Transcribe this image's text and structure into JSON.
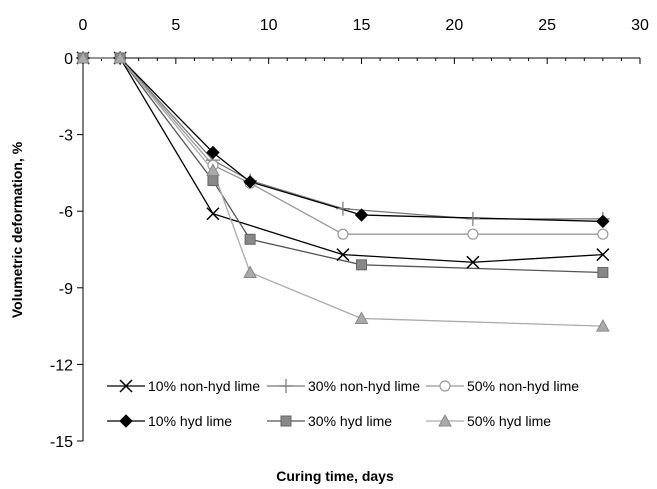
{
  "chart_data": {
    "type": "line",
    "xlabel": "Curing time, days",
    "ylabel": "Volumetric deformation, %",
    "xlim": [
      0,
      30
    ],
    "ylim": [
      -15,
      0
    ],
    "x_ticks": [
      "0",
      "5",
      "10",
      "15",
      "20",
      "25",
      "30"
    ],
    "y_ticks": [
      "0",
      "-3",
      "-6",
      "-9",
      "-12",
      "-15"
    ],
    "x_axis_position": "top",
    "grid": false,
    "legend_placement": "bottom-inside",
    "series": [
      {
        "name": "10% non-hyd lime",
        "marker": "x",
        "color": "#000000",
        "line_color": "#000000",
        "points": [
          [
            0,
            0
          ],
          [
            2,
            0
          ],
          [
            7,
            -6.1
          ],
          [
            14,
            -7.7
          ],
          [
            21,
            -8.0
          ],
          [
            28,
            -7.7
          ]
        ]
      },
      {
        "name": "30% non-hyd lime",
        "marker": "plus",
        "color": "#777777",
        "line_color": "#777777",
        "points": [
          [
            0,
            0
          ],
          [
            2,
            0
          ],
          [
            7,
            -4.0
          ],
          [
            9,
            -4.8
          ],
          [
            14,
            -5.9
          ],
          [
            21,
            -6.3
          ],
          [
            28,
            -6.3
          ]
        ]
      },
      {
        "name": "50% non-hyd lime",
        "marker": "open-circle",
        "color": "#999999",
        "line_color": "#999999",
        "points": [
          [
            0,
            0
          ],
          [
            2,
            0
          ],
          [
            7,
            -4.2
          ],
          [
            9,
            -4.9
          ],
          [
            14,
            -6.9
          ],
          [
            21,
            -6.9
          ],
          [
            28,
            -6.9
          ]
        ]
      },
      {
        "name": "10% hyd lime",
        "marker": "diamond",
        "color": "#000000",
        "line_color": "#000000",
        "points": [
          [
            0,
            0
          ],
          [
            2,
            0
          ],
          [
            7,
            -3.7
          ],
          [
            9,
            -4.85
          ],
          [
            15,
            -6.15
          ],
          [
            28,
            -6.4
          ]
        ]
      },
      {
        "name": "30% hyd lime",
        "marker": "square",
        "color": "#888888",
        "line_color": "#555555",
        "points": [
          [
            0,
            0
          ],
          [
            2,
            0
          ],
          [
            7,
            -4.8
          ],
          [
            9,
            -7.1
          ],
          [
            15,
            -8.1
          ],
          [
            28,
            -8.4
          ]
        ]
      },
      {
        "name": "50% hyd lime",
        "marker": "triangle",
        "color": "#aaaaaa",
        "line_color": "#aaaaaa",
        "points": [
          [
            0,
            0
          ],
          [
            2,
            0
          ],
          [
            7,
            -4.4
          ],
          [
            9,
            -8.4
          ],
          [
            15,
            -10.2
          ],
          [
            28,
            -10.5
          ]
        ]
      }
    ]
  }
}
